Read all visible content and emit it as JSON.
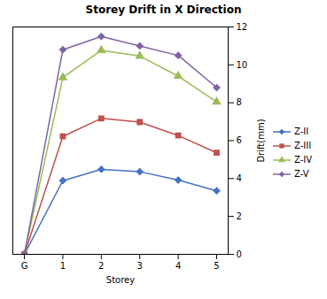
{
  "chart_data": {
    "type": "line",
    "title": "Storey Drift in X Direction",
    "xlabel": "Storey",
    "ylabel": "Drift(mm)",
    "x": [
      0,
      1,
      2,
      3,
      4,
      5
    ],
    "series": [
      {
        "name": "Z-II",
        "color": "#4472c4",
        "marker": "diamond",
        "values": [
          0.0,
          3.888,
          4.484,
          4.36,
          3.92,
          3.352
        ]
      },
      {
        "name": "Z-III",
        "color": "#c0504d",
        "marker": "square",
        "values": [
          0.0,
          6.224,
          7.176,
          6.98,
          6.272,
          5.36
        ]
      },
      {
        "name": "Z-IV",
        "color": "#9bbb59",
        "marker": "triangle",
        "values": [
          0.0,
          9.332,
          10.764,
          10.468,
          9.408,
          8.044
        ]
      },
      {
        "name": "Z-V",
        "color": "#8064a2",
        "marker": "diamond",
        "values": [
          0.0,
          10.8,
          11.5,
          11.0,
          10.5,
          8.8
        ]
      }
    ],
    "xlim": [
      -0.3,
      5.3
    ],
    "xticks": [
      {
        "value": 0,
        "label": "G"
      },
      1,
      2,
      3,
      4,
      5
    ],
    "ylim": [
      0,
      12
    ],
    "yticks": [
      0,
      2,
      4,
      6,
      8,
      10,
      12
    ],
    "grid": false,
    "legend": "right"
  }
}
